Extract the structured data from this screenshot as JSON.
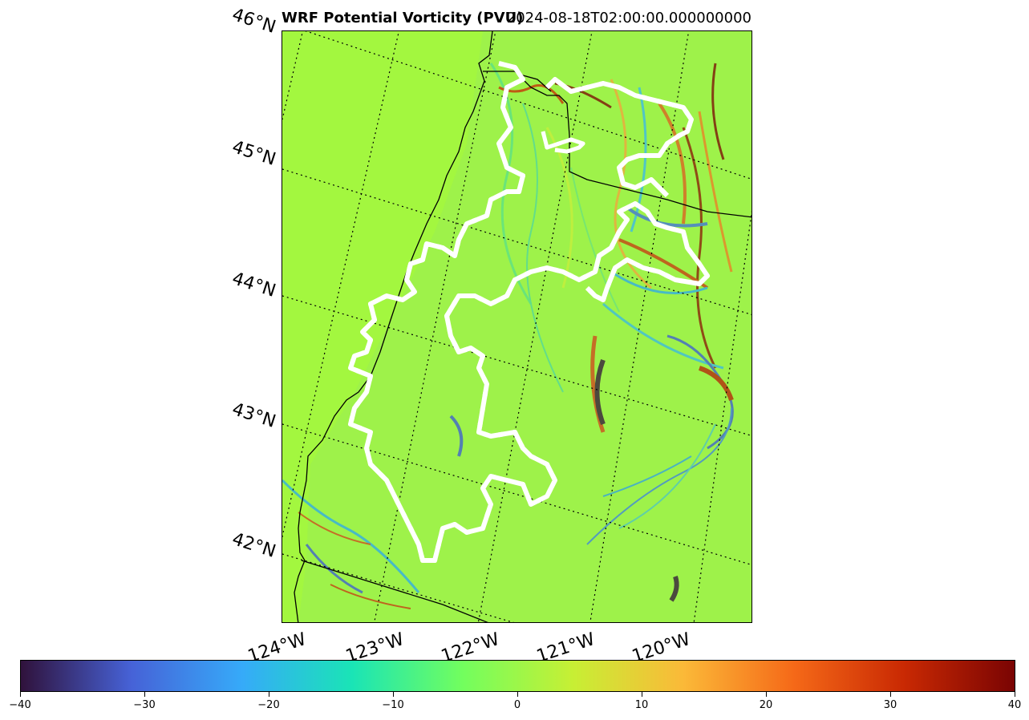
{
  "title": {
    "left": "WRF Potential Vorticity (PVU)",
    "right": "2024-08-18T02:00:00.000000000"
  },
  "map": {
    "lat_labels": [
      "46°N",
      "45°N",
      "44°N",
      "43°N",
      "42°N"
    ],
    "lon_labels": [
      "124°W",
      "123°W",
      "122°W",
      "121°W",
      "120°W"
    ],
    "background_color": "#a3f73f",
    "boundary_style": "white-black dashed outline"
  },
  "colorbar": {
    "min": -40,
    "max": 40,
    "tick_labels": [
      "−40",
      "−30",
      "−20",
      "−10",
      "0",
      "10",
      "20",
      "30",
      "40"
    ],
    "colormap": "turbo",
    "colors": [
      "#30123b",
      "#4662d7",
      "#36aaf9",
      "#1ae4b6",
      "#72fe5e",
      "#c7ef34",
      "#fbb938",
      "#f56918",
      "#c92903",
      "#7a0403"
    ]
  }
}
